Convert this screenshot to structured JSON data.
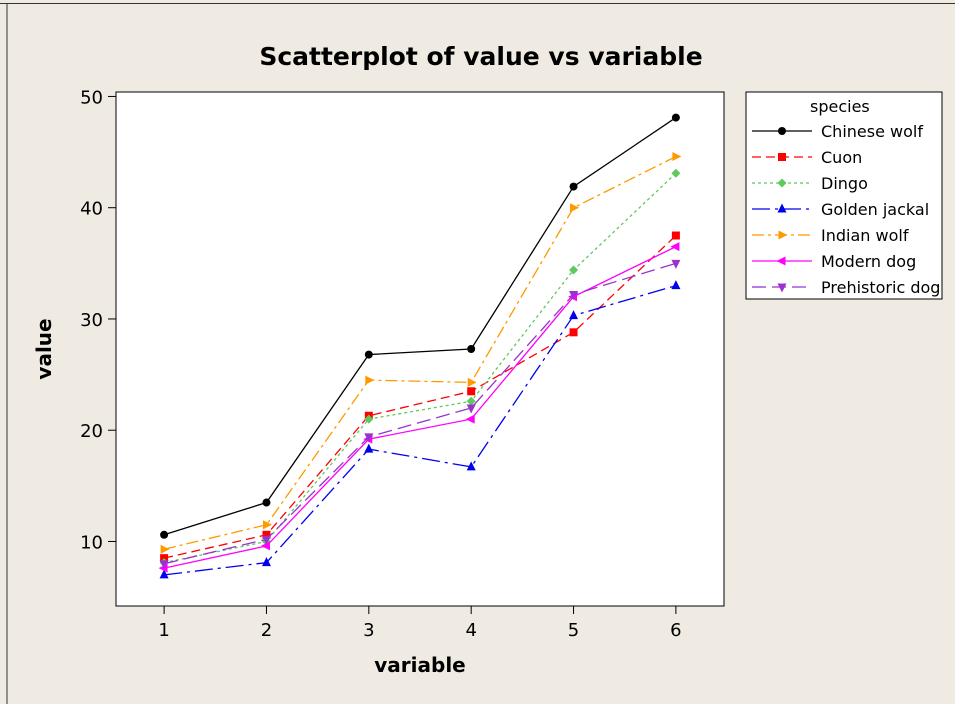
{
  "chart_data": {
    "type": "line",
    "title": "Scatterplot of value vs variable",
    "xlabel": "variable",
    "ylabel": "value",
    "x": [
      1,
      2,
      3,
      4,
      5,
      6
    ],
    "xlim": [
      0.53,
      6.47
    ],
    "ylim": [
      4.2,
      50.4
    ],
    "xticks": [
      1,
      2,
      3,
      4,
      5,
      6
    ],
    "yticks": [
      10,
      20,
      30,
      40,
      50
    ],
    "grid": false,
    "legend_title": "species",
    "legend_position": "right",
    "series": [
      {
        "name": "Chinese wolf",
        "color": "#000000",
        "marker": "circle",
        "dash": "solid",
        "values": [
          10.6,
          13.5,
          26.8,
          27.3,
          41.9,
          48.1
        ]
      },
      {
        "name": "Cuon",
        "color": "#ff0000",
        "marker": "square",
        "dash": "dash",
        "values": [
          8.5,
          10.6,
          21.3,
          23.5,
          28.8,
          37.5
        ]
      },
      {
        "name": "Dingo",
        "color": "#5fc85f",
        "marker": "diamond",
        "dash": "dot",
        "values": [
          8.1,
          10.0,
          21.0,
          22.6,
          34.4,
          43.1
        ]
      },
      {
        "name": "Golden jackal",
        "color": "#0000ee",
        "marker": "triangle-up",
        "dash": "longdashdot",
        "values": [
          7.0,
          8.1,
          18.3,
          16.7,
          30.3,
          33.0
        ]
      },
      {
        "name": "Indian wolf",
        "color": "#ff9900",
        "marker": "triangle-right",
        "dash": "dashdot",
        "values": [
          9.3,
          11.5,
          24.5,
          24.3,
          40.0,
          44.6
        ]
      },
      {
        "name": "Modern dog",
        "color": "#ff00ff",
        "marker": "triangle-left",
        "dash": "solid",
        "values": [
          7.6,
          9.6,
          19.2,
          21.0,
          32.0,
          36.5
        ]
      },
      {
        "name": "Prehistoric dog",
        "color": "#9933cc",
        "marker": "triangle-down",
        "dash": "longdash",
        "values": [
          8.0,
          10.2,
          19.4,
          22.0,
          32.2,
          35.0
        ]
      }
    ]
  }
}
